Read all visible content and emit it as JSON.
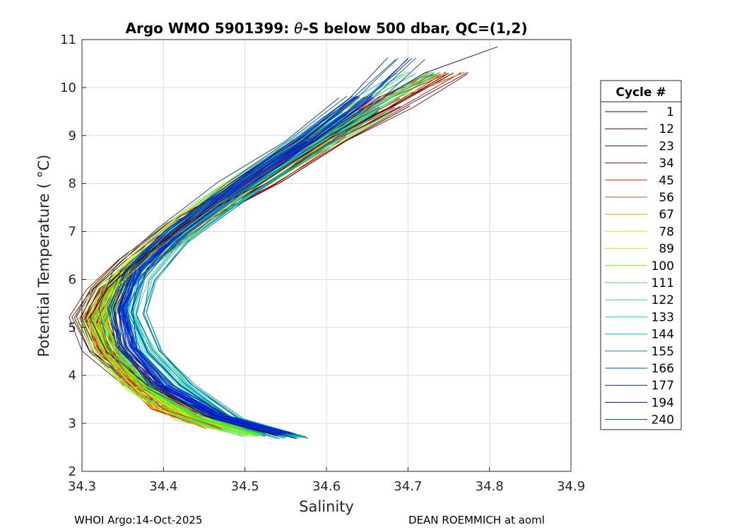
{
  "chart_data": {
    "type": "line",
    "title_prefix": "Argo WMO 5901399: ",
    "title_theta": "θ",
    "title_suffix": "-S below 500 dbar,  QC=(1,2)",
    "xlabel": "Salinity",
    "ylabel": "Potential Temperature ( °C)",
    "xlim": [
      34.3,
      34.9
    ],
    "ylim": [
      2,
      11
    ],
    "xticks": [
      "34.3",
      "34.4",
      "34.5",
      "34.6",
      "34.7",
      "34.8",
      "34.9"
    ],
    "yticks": [
      "2",
      "3",
      "4",
      "5",
      "6",
      "7",
      "8",
      "9",
      "10",
      "11"
    ],
    "grid": true,
    "legend": {
      "title": "Cycle #",
      "placement": "right",
      "entries": [
        {
          "label": "1",
          "color": "#3a0000"
        },
        {
          "label": "12",
          "color": "#660000"
        },
        {
          "label": "23",
          "color": "#8c0000"
        },
        {
          "label": "34",
          "color": "#b20000"
        },
        {
          "label": "45",
          "color": "#d92000"
        },
        {
          "label": "56",
          "color": "#f24a00"
        },
        {
          "label": "67",
          "color": "#e6a000"
        },
        {
          "label": "78",
          "color": "#f5e000"
        },
        {
          "label": "89",
          "color": "#c8f000"
        },
        {
          "label": "100",
          "color": "#7cf000"
        },
        {
          "label": "111",
          "color": "#3ce850"
        },
        {
          "label": "122",
          "color": "#20e08a"
        },
        {
          "label": "133",
          "color": "#10d8c0"
        },
        {
          "label": "144",
          "color": "#00c0d8"
        },
        {
          "label": "155",
          "color": "#0090b0"
        },
        {
          "label": "166",
          "color": "#005c8c"
        },
        {
          "label": "177",
          "color": "#0a2a7a"
        },
        {
          "label": "194",
          "color": "#0010c8"
        },
        {
          "label": "240",
          "color": "#0030e0"
        }
      ]
    },
    "representative_profiles": [
      {
        "cycle": "1",
        "points": [
          [
            34.54,
            2.75
          ],
          [
            34.46,
            3.1
          ],
          [
            34.38,
            3.8
          ],
          [
            34.33,
            4.5
          ],
          [
            34.31,
            5.2
          ],
          [
            34.33,
            5.8
          ],
          [
            34.37,
            6.4
          ],
          [
            34.43,
            7.2
          ],
          [
            34.52,
            8.0
          ],
          [
            34.6,
            8.9
          ],
          [
            34.68,
            9.6
          ],
          [
            34.75,
            10.3
          ]
        ]
      },
      {
        "cycle": "45",
        "points": [
          [
            34.47,
            2.9
          ],
          [
            34.4,
            3.3
          ],
          [
            34.36,
            3.9
          ],
          [
            34.33,
            4.6
          ],
          [
            34.32,
            5.2
          ],
          [
            34.34,
            5.8
          ],
          [
            34.38,
            6.5
          ],
          [
            34.44,
            7.3
          ],
          [
            34.52,
            8.2
          ],
          [
            34.6,
            9.0
          ],
          [
            34.68,
            9.8
          ],
          [
            34.75,
            10.3
          ]
        ]
      },
      {
        "cycle": "100",
        "points": [
          [
            34.52,
            2.75
          ],
          [
            34.44,
            3.1
          ],
          [
            34.38,
            3.7
          ],
          [
            34.34,
            4.4
          ],
          [
            34.32,
            5.1
          ],
          [
            34.34,
            5.8
          ],
          [
            34.39,
            6.6
          ],
          [
            34.47,
            7.6
          ],
          [
            34.56,
            8.6
          ],
          [
            34.65,
            9.5
          ],
          [
            34.73,
            10.3
          ]
        ]
      },
      {
        "cycle": "177",
        "points": [
          [
            34.56,
            2.7
          ],
          [
            34.48,
            3.1
          ],
          [
            34.42,
            3.8
          ],
          [
            34.38,
            4.5
          ],
          [
            34.36,
            5.3
          ],
          [
            34.37,
            6.0
          ],
          [
            34.41,
            6.8
          ],
          [
            34.48,
            7.7
          ],
          [
            34.56,
            8.6
          ],
          [
            34.64,
            9.5
          ],
          [
            34.72,
            10.3
          ],
          [
            34.81,
            10.85
          ]
        ]
      },
      {
        "cycle": "240",
        "points": [
          [
            34.55,
            2.78
          ],
          [
            34.47,
            3.15
          ],
          [
            34.4,
            3.8
          ],
          [
            34.36,
            4.6
          ],
          [
            34.35,
            5.4
          ],
          [
            34.37,
            6.2
          ],
          [
            34.42,
            7.0
          ],
          [
            34.5,
            8.0
          ],
          [
            34.58,
            8.9
          ],
          [
            34.65,
            9.8
          ],
          [
            34.7,
            10.6
          ]
        ]
      }
    ]
  },
  "footer": {
    "left": "WHOI Argo:14-Oct-2025",
    "right": "DEAN ROEMMICH at aoml"
  }
}
